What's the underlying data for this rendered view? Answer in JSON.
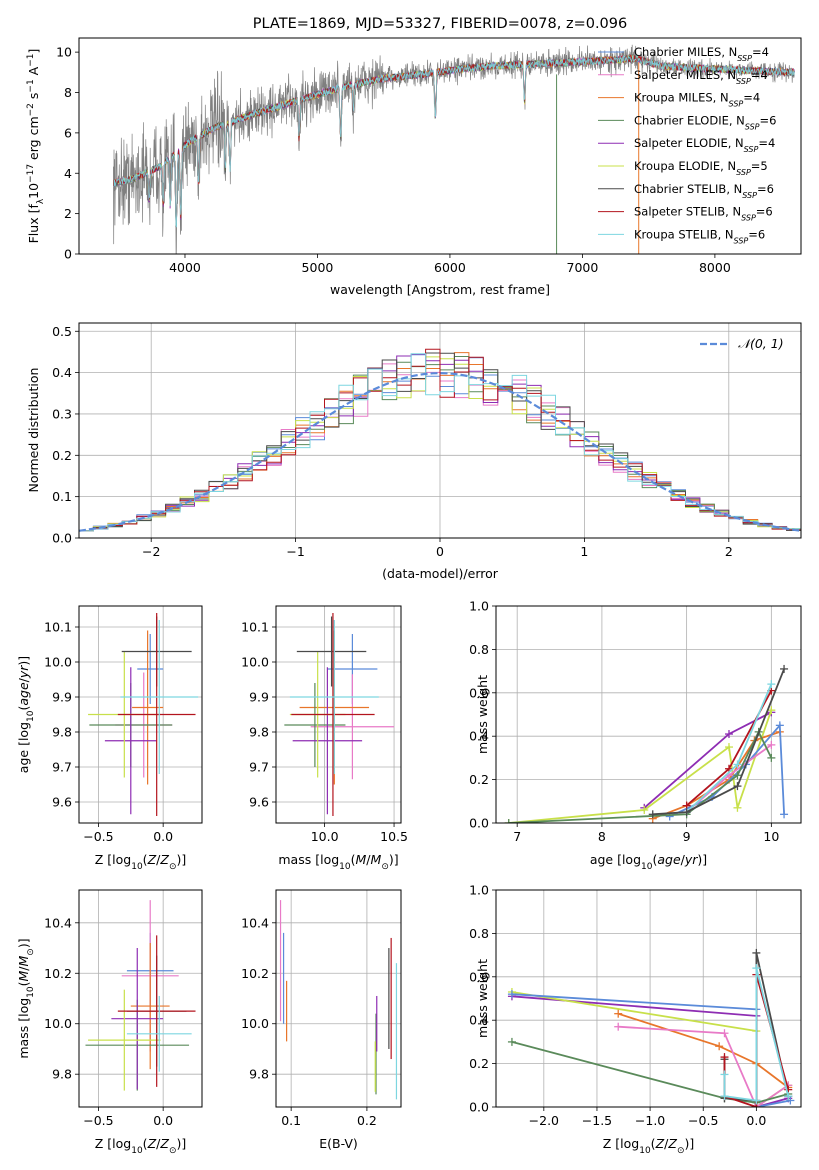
{
  "colors": {
    "chabrier_miles": "#5b8bd9",
    "salpeter_miles": "#e87ac7",
    "kroupa_miles": "#e8762b",
    "chabrier_elodie": "#5a8a5a",
    "salpeter_elodie": "#8e2db3",
    "kroupa_elodie": "#c8e04a",
    "chabrier_stelib": "#4a4a4a",
    "salpeter_stelib": "#b3141e",
    "kroupa_stelib": "#7dd6e0",
    "data": "#7f7f7f"
  },
  "chart_data": [
    {
      "type": "line",
      "title": "PLATE=1869, MJD=53327, FIBERID=0078, z=0.096",
      "xlabel": "wavelength [Angstrom, rest frame]",
      "ylabel": "Flux [f_λ10^-17 erg cm^-2 s^-1 A^-1]",
      "xlim": [
        3200,
        8650
      ],
      "ylim": [
        0,
        10.7
      ],
      "xticks": [
        4000,
        5000,
        6000,
        7000,
        8000
      ],
      "yticks": [
        0,
        2,
        4,
        6,
        8,
        10
      ],
      "grid": false,
      "legend_position": "top-right",
      "series": [
        {
          "name": "Chabrier MILES, N_SSP=4"
        },
        {
          "name": "Salpeter MILES, N_SSP=4"
        },
        {
          "name": "Kroupa MILES, N_SSP=4"
        },
        {
          "name": "Chabrier ELODIE, N_SSP=6"
        },
        {
          "name": "Salpeter ELODIE, N_SSP=4"
        },
        {
          "name": "Kroupa ELODIE, N_SSP=5"
        },
        {
          "name": "Chabrier STELIB, N_SSP=6"
        },
        {
          "name": "Salpeter STELIB, N_SSP=6"
        },
        {
          "name": "Kroupa STELIB, N_SSP=6"
        }
      ],
      "continuum": {
        "x": [
          3450,
          3600,
          3800,
          4000,
          4200,
          4500,
          4800,
          5000,
          5200,
          5500,
          5800,
          6000,
          6300,
          6600,
          6900,
          7200,
          7400,
          7600,
          7900,
          8200,
          8600
        ],
        "y": [
          3.5,
          3.7,
          4.3,
          5.4,
          6.2,
          6.9,
          7.5,
          7.9,
          8.3,
          8.7,
          8.9,
          9.1,
          9.3,
          9.4,
          9.5,
          9.6,
          9.7,
          9.3,
          9.2,
          9.1,
          9.0
        ]
      }
    },
    {
      "type": "line",
      "xlabel": "(data-model)/error",
      "ylabel": "Normed distribution",
      "xlim": [
        -2.5,
        2.5
      ],
      "ylim": [
        0,
        0.52
      ],
      "xticks": [
        -2,
        -1,
        0,
        1,
        2
      ],
      "yticks": [
        0.0,
        0.1,
        0.2,
        0.3,
        0.4,
        0.5
      ],
      "grid": true,
      "legend_position": "top-right",
      "reference": {
        "name": "𝒩(0, 1)",
        "mean": 0,
        "sigma": 1
      },
      "bin_width": 0.1,
      "bin_start": -2.5
    },
    {
      "type": "scatter",
      "xlabel": "Z [log10(Z/Z⊙)]",
      "ylabel": "age  [log10(age/yr)]",
      "xlim": [
        -0.65,
        0.3
      ],
      "ylim": [
        9.54,
        10.16
      ],
      "xticks": [
        -0.5,
        0.0
      ],
      "yticks": [
        9.6,
        9.7,
        9.8,
        9.9,
        10.0,
        10.1
      ],
      "grid": true,
      "points": [
        {
          "s": "chabrier_miles",
          "x": -0.1,
          "y": 9.98,
          "xerr": 0.1,
          "yerr": 0.1
        },
        {
          "s": "salpeter_miles",
          "x": -0.15,
          "y": 9.82,
          "xerr": 0.22,
          "yerr": 0.15
        },
        {
          "s": "kroupa_miles",
          "x": -0.12,
          "y": 9.87,
          "xerr": 0.12,
          "yerr": 0.22
        },
        {
          "s": "chabrier_elodie",
          "x": -0.25,
          "y": 9.82,
          "xerr": 0.32,
          "yerr": 0.12
        },
        {
          "s": "salpeter_elodie",
          "x": -0.25,
          "y": 9.775,
          "xerr": 0.2,
          "yerr": 0.21
        },
        {
          "s": "kroupa_elodie",
          "x": -0.3,
          "y": 9.85,
          "xerr": 0.28,
          "yerr": 0.18
        },
        {
          "s": "chabrier_stelib",
          "x": -0.05,
          "y": 10.03,
          "xerr": 0.27,
          "yerr": 0.1
        },
        {
          "s": "salpeter_stelib",
          "x": -0.05,
          "y": 9.85,
          "xerr": 0.3,
          "yerr": 0.29
        },
        {
          "s": "kroupa_stelib",
          "x": -0.03,
          "y": 9.9,
          "xerr": 0.3,
          "yerr": 0.22
        }
      ]
    },
    {
      "type": "scatter",
      "xlabel": "mass [log10(M/M⊙)]",
      "ylabel": "",
      "xlim": [
        9.65,
        10.55
      ],
      "ylim": [
        9.54,
        10.16
      ],
      "xticks": [
        10.0,
        10.5
      ],
      "yticks": [
        9.6,
        9.7,
        9.8,
        9.9,
        10.0,
        10.1
      ],
      "grid": true,
      "points": [
        {
          "s": "chabrier_miles",
          "x": 10.2,
          "y": 9.98,
          "xerr": 0.18,
          "yerr": 0.1
        },
        {
          "s": "salpeter_miles",
          "x": 10.2,
          "y": 9.815,
          "xerr": 0.3,
          "yerr": 0.15
        },
        {
          "s": "kroupa_miles",
          "x": 10.07,
          "y": 9.87,
          "xerr": 0.25,
          "yerr": 0.22
        },
        {
          "s": "chabrier_elodie",
          "x": 9.93,
          "y": 9.82,
          "xerr": 0.22,
          "yerr": 0.12
        },
        {
          "s": "salpeter_elodie",
          "x": 10.02,
          "y": 9.775,
          "xerr": 0.25,
          "yerr": 0.21
        },
        {
          "s": "kroupa_elodie",
          "x": 9.95,
          "y": 9.85,
          "xerr": 0.2,
          "yerr": 0.18
        },
        {
          "s": "chabrier_stelib",
          "x": 10.05,
          "y": 10.03,
          "xerr": 0.25,
          "yerr": 0.1
        },
        {
          "s": "salpeter_stelib",
          "x": 10.06,
          "y": 9.85,
          "xerr": 0.3,
          "yerr": 0.29
        },
        {
          "s": "kroupa_stelib",
          "x": 10.07,
          "y": 9.9,
          "xerr": 0.32,
          "yerr": 0.22
        }
      ]
    },
    {
      "type": "line",
      "xlabel": "age  [log10(age/yr)]",
      "ylabel": "mass weight",
      "xlim": [
        6.75,
        10.35
      ],
      "ylim": [
        0,
        1
      ],
      "xticks": [
        7,
        8,
        9,
        10
      ],
      "yticks": [
        0.0,
        0.2,
        0.4,
        0.6,
        0.8,
        1.0
      ],
      "grid": true,
      "series": [
        {
          "s": "salpeter_elodie",
          "x": [
            8.5,
            9.5,
            10.0
          ],
          "y": [
            0.07,
            0.41,
            0.51
          ]
        },
        {
          "s": "kroupa_elodie",
          "x": [
            6.9,
            8.5,
            9.5,
            9.6,
            10.0
          ],
          "y": [
            0.0,
            0.06,
            0.35,
            0.07,
            0.52
          ]
        },
        {
          "s": "kroupa_miles",
          "x": [
            8.6,
            9.0,
            9.5,
            9.8,
            10.1
          ],
          "y": [
            0.02,
            0.08,
            0.2,
            0.38,
            0.42
          ]
        },
        {
          "s": "chabrier_miles",
          "x": [
            8.8,
            9.3,
            9.7,
            10.1,
            10.15
          ],
          "y": [
            0.03,
            0.12,
            0.27,
            0.45,
            0.04
          ]
        },
        {
          "s": "salpeter_miles",
          "x": [
            9.0,
            9.5,
            10.0
          ],
          "y": [
            0.05,
            0.22,
            0.36
          ]
        },
        {
          "s": "chabrier_elodie",
          "x": [
            6.9,
            9.0,
            9.6,
            9.85,
            10.0
          ],
          "y": [
            0.0,
            0.04,
            0.22,
            0.42,
            0.3
          ]
        },
        {
          "s": "salpeter_stelib",
          "x": [
            9.0,
            9.5,
            10.0
          ],
          "y": [
            0.08,
            0.25,
            0.61
          ]
        },
        {
          "s": "kroupa_stelib",
          "x": [
            9.0,
            9.6,
            10.0
          ],
          "y": [
            0.05,
            0.27,
            0.64
          ]
        },
        {
          "s": "chabrier_stelib",
          "x": [
            8.6,
            9.0,
            9.6,
            10.15
          ],
          "y": [
            0.04,
            0.05,
            0.17,
            0.71
          ]
        }
      ]
    },
    {
      "type": "scatter",
      "xlabel": "Z [log10(Z/Z⊙)]",
      "ylabel": "mass [log10(M/M⊙)]",
      "xlim": [
        -0.65,
        0.3
      ],
      "ylim": [
        9.67,
        10.53
      ],
      "xticks": [
        -0.5,
        0.0
      ],
      "yticks": [
        9.8,
        10.0,
        10.2,
        10.4
      ],
      "grid": true,
      "points": [
        {
          "s": "chabrier_miles",
          "x": -0.1,
          "y": 10.21,
          "xerr": 0.18,
          "yerr": 0.15
        },
        {
          "s": "salpeter_miles",
          "x": -0.1,
          "y": 10.19,
          "xerr": 0.22,
          "yerr": 0.3
        },
        {
          "s": "kroupa_miles",
          "x": -0.1,
          "y": 10.07,
          "xerr": 0.15,
          "yerr": 0.25
        },
        {
          "s": "chabrier_elodie",
          "x": -0.2,
          "y": 9.915,
          "xerr": 0.4,
          "yerr": 0.18
        },
        {
          "s": "salpeter_elodie",
          "x": -0.2,
          "y": 10.02,
          "xerr": 0.2,
          "yerr": 0.28
        },
        {
          "s": "kroupa_elodie",
          "x": -0.3,
          "y": 9.935,
          "xerr": 0.28,
          "yerr": 0.2
        },
        {
          "s": "chabrier_stelib",
          "x": -0.05,
          "y": 10.05,
          "xerr": 0.23,
          "yerr": 0.22
        },
        {
          "s": "salpeter_stelib",
          "x": -0.05,
          "y": 10.05,
          "xerr": 0.3,
          "yerr": 0.3
        },
        {
          "s": "kroupa_stelib",
          "x": -0.03,
          "y": 9.96,
          "xerr": 0.25,
          "yerr": 0.15
        }
      ]
    },
    {
      "type": "scatter",
      "xlabel": "E(B-V)",
      "ylabel": "",
      "xlim": [
        0.08,
        0.245
      ],
      "ylim": [
        9.67,
        10.53
      ],
      "xticks": [
        0.1,
        0.2
      ],
      "yticks": [
        9.8,
        10.0,
        10.2,
        10.4
      ],
      "grid": true,
      "points": [
        {
          "s": "chabrier_miles",
          "x": 0.09,
          "y": 10.18,
          "xerr": 0,
          "yerr": 0.18
        },
        {
          "s": "salpeter_miles",
          "x": 0.086,
          "y": 10.25,
          "xerr": 0,
          "yerr": 0.24
        },
        {
          "s": "kroupa_miles",
          "x": 0.094,
          "y": 10.05,
          "xerr": 0,
          "yerr": 0.12
        },
        {
          "s": "chabrier_elodie",
          "x": 0.212,
          "y": 9.88,
          "xerr": 0,
          "yerr": 0.16
        },
        {
          "s": "salpeter_elodie",
          "x": 0.213,
          "y": 10.0,
          "xerr": 0,
          "yerr": 0.11
        },
        {
          "s": "kroupa_elodie",
          "x": 0.211,
          "y": 9.83,
          "xerr": 0,
          "yerr": 0.1
        },
        {
          "s": "chabrier_stelib",
          "x": 0.229,
          "y": 10.1,
          "xerr": 0,
          "yerr": 0.2
        },
        {
          "s": "salpeter_stelib",
          "x": 0.232,
          "y": 10.1,
          "xerr": 0,
          "yerr": 0.24
        },
        {
          "s": "kroupa_stelib",
          "x": 0.239,
          "y": 9.97,
          "xerr": 0,
          "yerr": 0.27
        }
      ]
    },
    {
      "type": "line",
      "xlabel": "Z [log10(Z/Z⊙)]",
      "ylabel": "mass weight",
      "xlim": [
        -2.45,
        0.42
      ],
      "ylim": [
        0,
        1
      ],
      "xticks": [
        -2.0,
        -1.5,
        -1.0,
        -0.5,
        0.0
      ],
      "yticks": [
        0.0,
        0.2,
        0.4,
        0.6,
        0.8,
        1.0
      ],
      "grid": true,
      "series": [
        {
          "s": "salpeter_elodie",
          "x": [
            -2.3,
            0.0,
            0.0,
            0.3
          ],
          "y": [
            0.51,
            0.42,
            0.0,
            0.04
          ]
        },
        {
          "s": "kroupa_elodie",
          "x": [
            -2.3,
            0.0,
            0.0,
            0.3
          ],
          "y": [
            0.53,
            0.35,
            0.0,
            0.1
          ]
        },
        {
          "s": "chabrier_miles",
          "x": [
            -2.3,
            0.0,
            0.0,
            0.32
          ],
          "y": [
            0.52,
            0.45,
            0.0,
            0.03
          ]
        },
        {
          "s": "kroupa_miles",
          "x": [
            -1.3,
            -0.35,
            0.0,
            0.3
          ],
          "y": [
            0.43,
            0.28,
            0.2,
            0.09
          ]
        },
        {
          "s": "salpeter_miles",
          "x": [
            -1.3,
            -0.3,
            0.0,
            0.3
          ],
          "y": [
            0.37,
            0.34,
            0.0,
            0.1
          ]
        },
        {
          "s": "chabrier_elodie",
          "x": [
            -2.3,
            -0.3,
            0.0,
            0.3
          ],
          "y": [
            0.3,
            0.04,
            0.02,
            0.06
          ]
        },
        {
          "s": "chabrier_stelib",
          "x": [
            -0.3,
            -0.3,
            0.0,
            0.0,
            0.3
          ],
          "y": [
            0.22,
            0.04,
            0.03,
            0.71,
            0.05
          ]
        },
        {
          "s": "salpeter_stelib",
          "x": [
            -0.3,
            -0.3,
            0.0,
            0.0,
            0.3
          ],
          "y": [
            0.23,
            0.05,
            0.0,
            0.61,
            0.08
          ]
        },
        {
          "s": "kroupa_stelib",
          "x": [
            -0.3,
            -0.3,
            0.0,
            0.0,
            0.3
          ],
          "y": [
            0.15,
            0.05,
            0.03,
            0.64,
            0.05
          ]
        }
      ]
    }
  ]
}
